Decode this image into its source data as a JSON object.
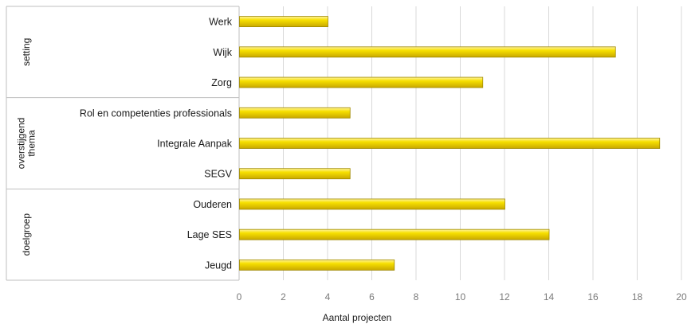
{
  "chart_data": {
    "type": "bar",
    "orientation": "horizontal",
    "groups": [
      {
        "label": "setting",
        "categories": [
          "Werk",
          "Wijk",
          "Zorg"
        ]
      },
      {
        "label": "overstijgend\nthema",
        "categories": [
          "Rol en competenties professionals",
          "Integrale Aanpak",
          "SEGV"
        ]
      },
      {
        "label": "doelgroep",
        "categories": [
          "Ouderen",
          "Lage SES",
          "Jeugd"
        ]
      }
    ],
    "categories": [
      "Werk",
      "Wijk",
      "Zorg",
      "Rol en competenties professionals",
      "Integrale Aanpak",
      "SEGV",
      "Ouderen",
      "Lage SES",
      "Jeugd"
    ],
    "values": [
      4,
      17,
      11,
      5,
      19,
      5,
      12,
      14,
      7
    ],
    "xlabel": "Aantal projecten",
    "ylabel": "",
    "xlim": [
      0,
      20
    ],
    "xticks": [
      "0",
      "2",
      "4",
      "6",
      "8",
      "10",
      "12",
      "14",
      "16",
      "18",
      "20"
    ],
    "grid": "vertical",
    "legend": "none",
    "colors": {
      "bar_fill": "#f2d800",
      "bar_stroke": "#a08a00",
      "grid": "#d9d9d9",
      "axis": "#bfbfbf"
    }
  }
}
